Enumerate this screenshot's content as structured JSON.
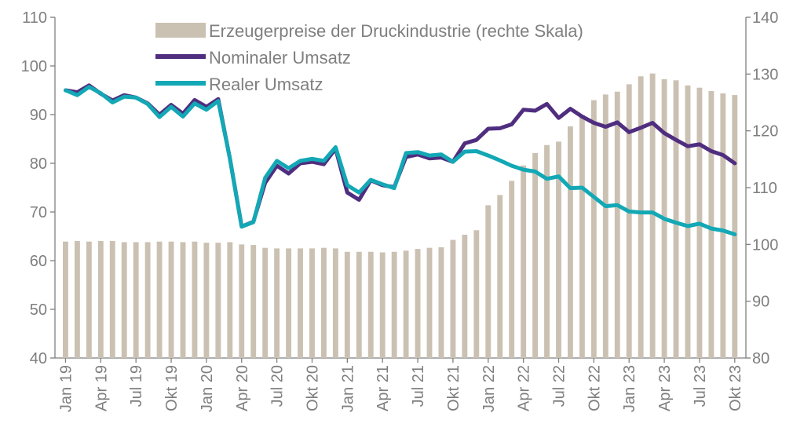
{
  "colors": {
    "bars": "#cbc1b2",
    "nominal": "#4f2d7f",
    "real": "#13a8b5",
    "axis": "#7f7f7f",
    "text": "#7f7f7f"
  },
  "chart_data": {
    "type": "bar+line",
    "title": "",
    "xlabel": "",
    "ylabel": "",
    "left_axis": {
      "ylim": [
        40,
        110
      ],
      "ticks": [
        "40",
        "50",
        "60",
        "70",
        "80",
        "90",
        "100",
        "110"
      ]
    },
    "right_axis": {
      "ylim": [
        80,
        140
      ],
      "ticks": [
        "80",
        "90",
        "100",
        "110",
        "120",
        "130",
        "140"
      ]
    },
    "x_tick_labels": [
      "Jan 19",
      "Apr 19",
      "Jul 19",
      "Okt 19",
      "Jan 20",
      "Apr 20",
      "Jul 20",
      "Okt 20",
      "Jan 21",
      "Apr 21",
      "Jul 21",
      "Okt 21",
      "Jan 22",
      "Apr 22",
      "Jul 22",
      "Okt 22",
      "Jan 23",
      "Apr 23",
      "Jul 23",
      "Okt 23"
    ],
    "months": [
      "2019-01",
      "2019-02",
      "2019-03",
      "2019-04",
      "2019-05",
      "2019-06",
      "2019-07",
      "2019-08",
      "2019-09",
      "2019-10",
      "2019-11",
      "2019-12",
      "2020-01",
      "2020-02",
      "2020-03",
      "2020-04",
      "2020-05",
      "2020-06",
      "2020-07",
      "2020-08",
      "2020-09",
      "2020-10",
      "2020-11",
      "2020-12",
      "2021-01",
      "2021-02",
      "2021-03",
      "2021-04",
      "2021-05",
      "2021-06",
      "2021-07",
      "2021-08",
      "2021-09",
      "2021-10",
      "2021-11",
      "2021-12",
      "2022-01",
      "2022-02",
      "2022-03",
      "2022-04",
      "2022-05",
      "2022-06",
      "2022-07",
      "2022-08",
      "2022-09",
      "2022-10",
      "2022-11",
      "2022-12",
      "2023-01",
      "2023-02",
      "2023-03",
      "2023-04",
      "2023-05",
      "2023-06",
      "2023-07",
      "2023-08",
      "2023-09",
      "2023-10"
    ],
    "legend": {
      "placement": "top-center",
      "items": [
        "Erzeugerpreise der Druckindustrie (rechte Skala)",
        "Nominaler Umsatz",
        "Realer Umsatz"
      ]
    },
    "series": [
      {
        "name": "Erzeugerpreise der Druckindustrie (rechte Skala)",
        "type": "bar",
        "axis": "right",
        "values": [
          100.5,
          100.6,
          100.5,
          100.6,
          100.6,
          100.4,
          100.4,
          100.4,
          100.5,
          100.5,
          100.4,
          100.5,
          100.3,
          100.3,
          100.4,
          100.0,
          99.9,
          99.4,
          99.3,
          99.3,
          99.3,
          99.3,
          99.4,
          99.3,
          98.7,
          98.7,
          98.7,
          98.6,
          98.7,
          98.9,
          99.2,
          99.4,
          99.5,
          100.8,
          101.7,
          102.5,
          106.9,
          108.7,
          111.2,
          113.9,
          116.1,
          117.5,
          118.1,
          120.8,
          122.8,
          125.4,
          126.4,
          126.9,
          128.2,
          129.6,
          130.1,
          129.1,
          128.9,
          128.0,
          127.6,
          127.0,
          126.6,
          126.3
        ]
      },
      {
        "name": "Nominaler Umsatz",
        "type": "line",
        "axis": "left",
        "values": [
          95.0,
          94.6,
          96.0,
          94.3,
          92.9,
          94.0,
          93.5,
          92.3,
          90.0,
          92.0,
          90.2,
          93.0,
          91.6,
          93.2,
          81.0,
          67.0,
          68.0,
          76.0,
          79.5,
          77.9,
          80.0,
          80.3,
          79.8,
          83.0,
          74.0,
          72.5,
          76.5,
          75.5,
          75.1,
          81.3,
          81.8,
          81.0,
          81.2,
          80.3,
          84.1,
          84.8,
          87.1,
          87.2,
          88.0,
          91.0,
          90.8,
          92.2,
          89.3,
          91.2,
          89.6,
          88.3,
          87.5,
          88.4,
          86.4,
          87.3,
          88.3,
          86.2,
          84.8,
          83.5,
          83.9,
          82.5,
          81.7,
          80.0
        ]
      },
      {
        "name": "Realer Umsatz",
        "type": "line",
        "axis": "left",
        "values": [
          95.0,
          94.0,
          95.7,
          94.4,
          92.5,
          93.7,
          93.5,
          92.2,
          89.5,
          91.6,
          89.6,
          92.3,
          91.0,
          92.8,
          81.0,
          67.0,
          67.9,
          77.0,
          80.5,
          79.0,
          80.5,
          80.9,
          80.5,
          83.3,
          75.5,
          74.0,
          76.6,
          75.7,
          74.9,
          82.1,
          82.3,
          81.6,
          81.8,
          80.3,
          82.4,
          82.5,
          81.6,
          80.6,
          79.5,
          78.7,
          78.3,
          76.8,
          77.3,
          74.9,
          75.0,
          73.1,
          71.2,
          71.4,
          70.1,
          69.9,
          69.9,
          68.6,
          67.8,
          67.1,
          67.6,
          66.6,
          66.2,
          65.4
        ]
      }
    ]
  }
}
